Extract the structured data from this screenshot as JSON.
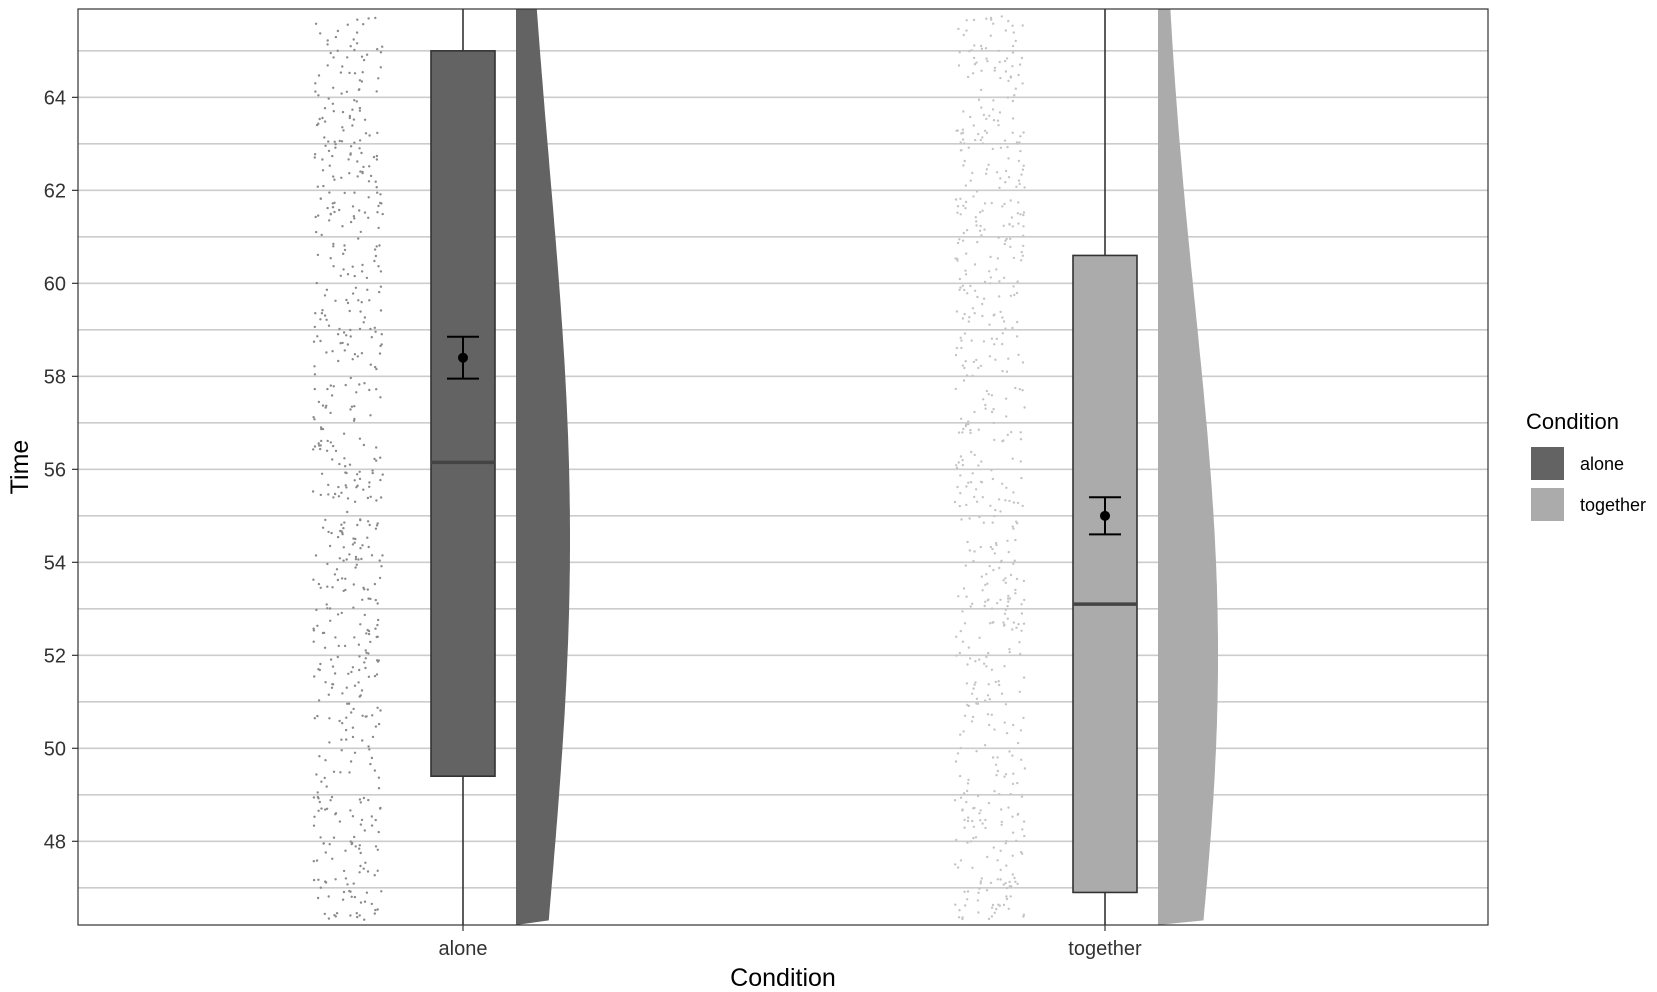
{
  "chart_data": {
    "type": "raincloud",
    "xlabel": "Condition",
    "ylabel": "Time",
    "categories": [
      "alone",
      "together"
    ],
    "ylim": [
      46.2,
      65.9
    ],
    "y_ticks": [
      48,
      50,
      52,
      54,
      56,
      58,
      60,
      62,
      64
    ],
    "grid": "horizontal major and minor",
    "legend": {
      "title": "Condition",
      "position": "right",
      "entries": [
        "alone",
        "together"
      ]
    },
    "groups": [
      {
        "name": "alone",
        "color": "#636363",
        "boxplot": {
          "whisker_low": 46.2,
          "q1": 49.4,
          "median": 56.15,
          "q3": 65.0,
          "whisker_high": 65.9
        },
        "mean": 58.4,
        "mean_ci": [
          57.95,
          58.85
        ],
        "jitter_points": 600
      },
      {
        "name": "together",
        "color": "#ababab",
        "boxplot": {
          "whisker_low": 46.2,
          "q1": 46.9,
          "median": 53.1,
          "q3": 60.6,
          "whisker_high": 65.9
        },
        "mean": 55.0,
        "mean_ci": [
          54.6,
          55.4
        ],
        "jitter_points": 600
      }
    ]
  }
}
